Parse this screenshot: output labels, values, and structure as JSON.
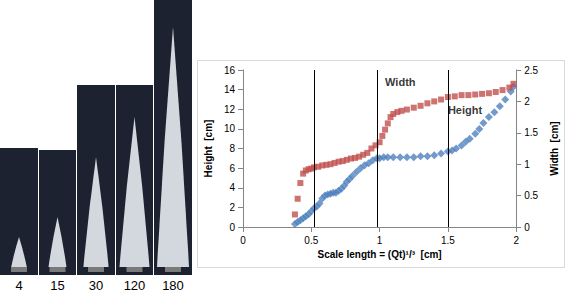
{
  "chart_data": {
    "type": "scatter",
    "x_label": "Scale length = (Qt)¹/³  [cm]",
    "y_label": "Height  [cm]",
    "y2_label": "Width  [cm]",
    "xlim": [
      0,
      2
    ],
    "xticks": [
      0,
      0.5,
      1,
      1.5,
      2
    ],
    "ylim": [
      0,
      16
    ],
    "yticks": [
      0,
      2,
      4,
      6,
      8,
      10,
      12,
      14,
      16
    ],
    "y2lim": [
      0,
      2.5
    ],
    "y2ticks": [
      0,
      0.5,
      1,
      1.5,
      2,
      2.5
    ],
    "grid": false,
    "vertical_lines": [
      0.52,
      0.98,
      1.5
    ],
    "annotations": [
      {
        "text": "Width",
        "x": 1.04,
        "y": 14.8
      },
      {
        "text": "Height",
        "x": 1.5,
        "y": 11.9
      }
    ],
    "series": [
      {
        "name": "Height",
        "color": "#4f81bd",
        "marker": "diamond",
        "axis": "y",
        "x": [
          0.38,
          0.4,
          0.42,
          0.44,
          0.46,
          0.48,
          0.5,
          0.52,
          0.54,
          0.56,
          0.58,
          0.6,
          0.62,
          0.64,
          0.66,
          0.68,
          0.7,
          0.72,
          0.74,
          0.76,
          0.78,
          0.8,
          0.83,
          0.86,
          0.89,
          0.92,
          0.95,
          0.98,
          1.0,
          1.03,
          1.06,
          1.1,
          1.15,
          1.2,
          1.25,
          1.3,
          1.35,
          1.4,
          1.45,
          1.5,
          1.53,
          1.56,
          1.6,
          1.63,
          1.66,
          1.7,
          1.73,
          1.76,
          1.8,
          1.84,
          1.88,
          1.92,
          1.96,
          1.98
        ],
        "values": [
          0.3,
          0.5,
          0.7,
          0.9,
          1.1,
          1.3,
          1.6,
          1.9,
          2.1,
          2.4,
          2.9,
          3.2,
          3.3,
          3.4,
          3.5,
          3.5,
          3.7,
          3.9,
          4.2,
          4.6,
          4.9,
          5.2,
          5.6,
          6.0,
          6.3,
          6.5,
          6.8,
          7.0,
          7.0,
          7.1,
          7.1,
          7.1,
          7.1,
          7.1,
          7.1,
          7.2,
          7.2,
          7.3,
          7.5,
          7.7,
          7.8,
          8.0,
          8.3,
          8.7,
          9.0,
          9.5,
          10.0,
          10.6,
          11.2,
          11.7,
          12.3,
          13.0,
          13.8,
          14.3
        ]
      },
      {
        "name": "Width",
        "color": "#c0504d",
        "marker": "square",
        "axis": "y2",
        "x": [
          0.38,
          0.4,
          0.42,
          0.44,
          0.46,
          0.48,
          0.5,
          0.52,
          0.55,
          0.58,
          0.61,
          0.64,
          0.67,
          0.7,
          0.73,
          0.76,
          0.79,
          0.82,
          0.85,
          0.88,
          0.91,
          0.94,
          0.97,
          1.0,
          1.02,
          1.04,
          1.06,
          1.08,
          1.1,
          1.13,
          1.16,
          1.2,
          1.25,
          1.3,
          1.35,
          1.4,
          1.45,
          1.5,
          1.55,
          1.6,
          1.65,
          1.7,
          1.75,
          1.8,
          1.85,
          1.9,
          1.95,
          1.98
        ],
        "values": [
          0.2,
          0.45,
          0.7,
          0.85,
          0.9,
          0.92,
          0.93,
          0.95,
          0.96,
          0.98,
          0.99,
          1.0,
          1.02,
          1.04,
          1.05,
          1.07,
          1.09,
          1.1,
          1.12,
          1.15,
          1.18,
          1.25,
          1.3,
          1.35,
          1.45,
          1.55,
          1.65,
          1.75,
          1.8,
          1.83,
          1.85,
          1.87,
          1.9,
          1.93,
          1.97,
          2.0,
          2.03,
          2.07,
          2.08,
          2.1,
          2.1,
          2.11,
          2.12,
          2.13,
          2.15,
          2.18,
          2.22,
          2.28
        ]
      }
    ]
  },
  "photos": {
    "labels": [
      4,
      15,
      30,
      120,
      180
    ]
  }
}
